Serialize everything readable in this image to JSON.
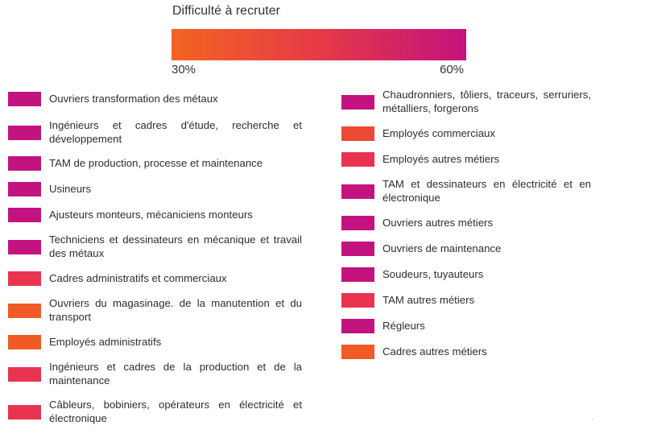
{
  "chart_data": {
    "type": "legend",
    "title": "Difficulté à recruter",
    "scale": {
      "min_label": "30%",
      "max_label": "60%",
      "min": 30,
      "max": 60,
      "colors": [
        "#f26522",
        "#e63946",
        "#c3137e"
      ]
    },
    "legend_left": [
      {
        "label": "Ouvriers transformation des métaux",
        "color": "#c3137e"
      },
      {
        "label": "Ingénieurs et cadres d'étude, recherche et développement",
        "color": "#c3137e"
      },
      {
        "label": "TAM de production, processe et maintenance",
        "color": "#c3137e"
      },
      {
        "label": "Usineurs",
        "color": "#c3137e"
      },
      {
        "label": "Ajusteurs monteurs, mécaniciens monteurs",
        "color": "#c3137e"
      },
      {
        "label": "Techniciens et dessinateurs en mécanique et travail des métaux",
        "color": "#c3137e"
      },
      {
        "label": "Cadres administratifs et commerciaux",
        "color": "#e8344f"
      },
      {
        "label": "Ouvriers du magasinage. de la manutention et du transport",
        "color": "#ef5a25"
      },
      {
        "label": "Employés administratifs",
        "color": "#ef5a25"
      },
      {
        "label": "Ingénieurs et cadres de la production et de la maintenance",
        "color": "#e8344f"
      },
      {
        "label": "Câbleurs, bobiniers,  opérateurs en électricité et électronique",
        "color": "#e8344f"
      }
    ],
    "legend_right": [
      {
        "label": "Chaudronniers, tôliers, traceurs, serruriers, métalliers, forgerons",
        "color": "#c3137e"
      },
      {
        "label": "Employés commerciaux",
        "color": "#ec4a36"
      },
      {
        "label": "Employés autres métiers",
        "color": "#e8344f"
      },
      {
        "label": "TAM et dessinateurs en électricité et en électronique",
        "color": "#c3137e"
      },
      {
        "label": "Ouvriers autres métiers",
        "color": "#c3137e"
      },
      {
        "label": "Ouvriers de maintenance",
        "color": "#c3137e"
      },
      {
        "label": "Soudeurs, tuyauteurs",
        "color": "#c3137e"
      },
      {
        "label": "TAM autres métiers",
        "color": "#e8344f"
      },
      {
        "label": "Régleurs",
        "color": "#c3137e"
      },
      {
        "label": "Cadres autres métiers",
        "color": "#ef5a25"
      }
    ]
  }
}
